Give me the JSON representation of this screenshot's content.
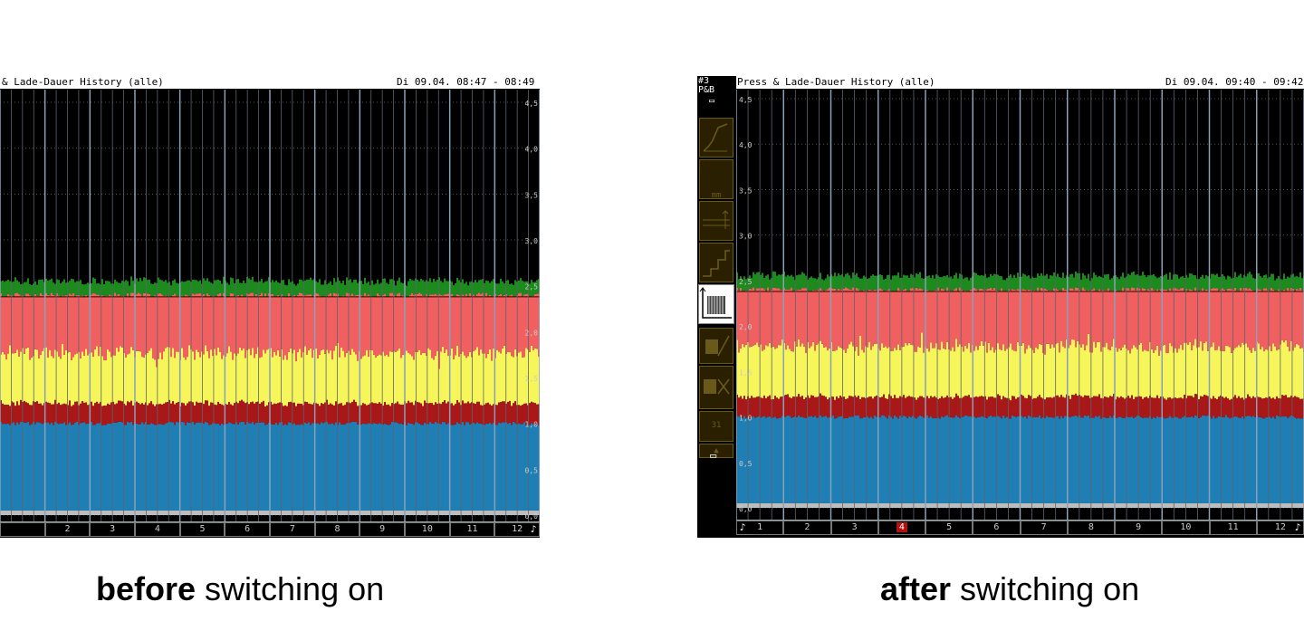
{
  "before": {
    "title": "& Lade-Dauer History (alle)",
    "datetime": "Di 09.04. 08:47 - 08:49",
    "y_ticks": [
      "4,5",
      "4,0",
      "3,5",
      "3,0",
      "2,5",
      "2,0",
      "1,5",
      "1,0",
      "0,5",
      "0,0"
    ],
    "x_labels": [
      "",
      "2",
      "3",
      "4",
      "5",
      "6",
      "7",
      "8",
      "9",
      "10",
      "11",
      "12"
    ],
    "caption_bold": "before",
    "caption_rest": " switching on"
  },
  "after": {
    "header_id": "#3",
    "header_label": "P&B",
    "title": "Press & Lade-Dauer History (alle)",
    "datetime": "Di 09.04. 09:40 - 09:42",
    "y_ticks": [
      "4,5",
      "4,0",
      "3,5",
      "3,0",
      "2,5",
      "2,0",
      "1,5",
      "1,0",
      "0,5",
      "0,0"
    ],
    "x_labels": [
      "1",
      "2",
      "3",
      "4",
      "5",
      "6",
      "7",
      "8",
      "9",
      "10",
      "11",
      "12"
    ],
    "active_x": "4",
    "caption_bold": "after",
    "caption_rest": " switching on"
  },
  "colors": {
    "grey": "#bdbdbd",
    "blue": "#1f7fb4",
    "darkred": "#a81818",
    "yellow": "#f6f65a",
    "salmon": "#f06060",
    "green": "#1c8a1c",
    "background": "#000000"
  },
  "icons": {
    "bell": "bell-icon",
    "cup": "cup-icon"
  }
}
